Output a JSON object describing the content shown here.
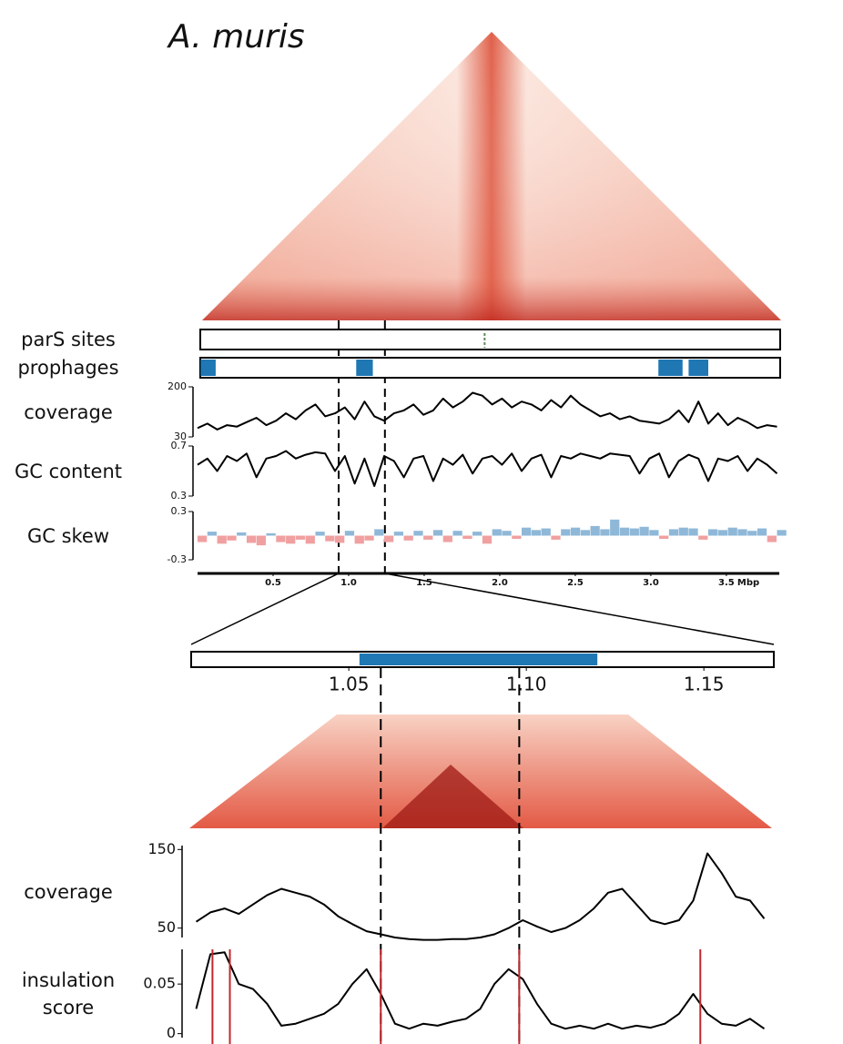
{
  "chart_data": [
    {
      "type": "tracks",
      "title": "A. muris",
      "xlim": [
        0,
        3.85
      ],
      "xticks": [
        0.5,
        {
          "value": 1,
          "label": "1.0"
        },
        1.5,
        {
          "value": 2,
          "label": "2.0"
        },
        2.5,
        {
          "value": 3,
          "label": "3.0"
        },
        3.5
      ],
      "x_unit": "Mbp",
      "highlight": [
        0.934,
        1.24
      ],
      "x": [
        0,
        0.065,
        0.13,
        0.195,
        0.26,
        0.325,
        0.39,
        0.455,
        0.52,
        0.585,
        0.65,
        0.715,
        0.78,
        0.845,
        0.91,
        0.975,
        1.04,
        1.105,
        1.17,
        1.235,
        1.3,
        1.365,
        1.43,
        1.495,
        1.56,
        1.625,
        1.69,
        1.755,
        1.82,
        1.885,
        1.95,
        2.015,
        2.08,
        2.145,
        2.21,
        2.275,
        2.34,
        2.405,
        2.47,
        2.535,
        2.6,
        2.665,
        2.73,
        2.795,
        2.86,
        2.925,
        2.99,
        3.055,
        3.12,
        3.185,
        3.25,
        3.315,
        3.38,
        3.445,
        3.51,
        3.575,
        3.64,
        3.705,
        3.77,
        3.835
      ],
      "tracks": [
        {
          "type": "sites",
          "name": "parS sites",
          "positions": [
            1.9
          ],
          "color": "#5b8c5a"
        },
        {
          "type": "intervals",
          "name": "prophages",
          "starts": [
            0.02,
            1.05,
            3.05,
            3.25
          ],
          "ends": [
            0.12,
            1.16,
            3.21,
            3.38
          ],
          "color": "#1f77b4"
        },
        {
          "type": "line",
          "name": "coverage",
          "ylim": [
            30,
            200
          ],
          "yticks": [
            30,
            200
          ],
          "color": "#000000",
          "values": [
            60,
            75,
            55,
            70,
            65,
            80,
            95,
            70,
            85,
            110,
            90,
            120,
            140,
            100,
            110,
            130,
            90,
            150,
            100,
            85,
            110,
            120,
            140,
            105,
            120,
            160,
            130,
            150,
            180,
            170,
            140,
            160,
            130,
            150,
            140,
            120,
            155,
            130,
            170,
            140,
            120,
            100,
            110,
            90,
            100,
            85,
            80,
            75,
            90,
            120,
            80,
            150,
            75,
            110,
            70,
            95,
            80,
            60,
            70,
            65
          ]
        },
        {
          "type": "line",
          "name": "GC content",
          "ylim": [
            0.3,
            0.7
          ],
          "yticks": [
            0.3,
            0.7
          ],
          "color": "#000000",
          "values": [
            0.55,
            0.6,
            0.5,
            0.62,
            0.58,
            0.64,
            0.45,
            0.6,
            0.62,
            0.66,
            0.6,
            0.63,
            0.65,
            0.64,
            0.5,
            0.62,
            0.4,
            0.6,
            0.38,
            0.62,
            0.58,
            0.45,
            0.6,
            0.62,
            0.42,
            0.6,
            0.55,
            0.63,
            0.48,
            0.6,
            0.62,
            0.55,
            0.64,
            0.5,
            0.6,
            0.63,
            0.45,
            0.62,
            0.6,
            0.64,
            0.62,
            0.6,
            0.64,
            0.63,
            0.62,
            0.48,
            0.6,
            0.64,
            0.45,
            0.58,
            0.63,
            0.6,
            0.42,
            0.6,
            0.58,
            0.62,
            0.5,
            0.6,
            0.55,
            0.48
          ]
        },
        {
          "type": "skew",
          "name": "GC skew",
          "ylim": [
            -0.3,
            0.3
          ],
          "yticks": [
            -0.3,
            0.3
          ],
          "positive_color": "#8fb8d8",
          "negative_color": "#f0a0a0",
          "values": [
            -0.08,
            0.05,
            -0.1,
            -0.06,
            0.04,
            -0.09,
            -0.12,
            0.03,
            -0.08,
            -0.1,
            -0.05,
            -0.1,
            0.05,
            -0.07,
            -0.09,
            0.06,
            -0.1,
            -0.06,
            0.08,
            -0.08,
            0.05,
            -0.06,
            0.06,
            -0.05,
            0.07,
            -0.08,
            0.06,
            -0.04,
            0.05,
            -0.1,
            0.08,
            0.06,
            -0.04,
            0.1,
            0.07,
            0.09,
            -0.05,
            0.08,
            0.1,
            0.07,
            0.12,
            0.08,
            0.2,
            0.1,
            0.09,
            0.11,
            0.07,
            -0.04,
            0.08,
            0.1,
            0.09,
            -0.05,
            0.08,
            0.07,
            0.1,
            0.08,
            0.06,
            0.09,
            -0.08,
            0.07
          ]
        }
      ]
    },
    {
      "type": "tracks",
      "xlim": [
        1.0056,
        1.1697
      ],
      "xticks": [
        1.05,
        {
          "value": 1.1,
          "label": "1.10"
        },
        1.15
      ],
      "boundaries": [
        1.059,
        1.098
      ],
      "x": [
        1.007,
        1.011,
        1.015,
        1.019,
        1.023,
        1.027,
        1.031,
        1.035,
        1.039,
        1.043,
        1.047,
        1.051,
        1.055,
        1.059,
        1.063,
        1.067,
        1.071,
        1.075,
        1.079,
        1.083,
        1.087,
        1.091,
        1.095,
        1.099,
        1.103,
        1.107,
        1.111,
        1.115,
        1.119,
        1.123,
        1.127,
        1.131,
        1.135,
        1.139,
        1.143,
        1.147,
        1.151,
        1.155,
        1.159,
        1.163,
        1.167
      ],
      "tracks": [
        {
          "type": "intervals",
          "starts": [
            1.053
          ],
          "ends": [
            1.12
          ],
          "color": "#1f77b4"
        },
        {
          "type": "line",
          "name": "coverage",
          "ylim": [
            38,
            155
          ],
          "yticks": [
            50,
            150
          ],
          "color": "#000000",
          "values": [
            58,
            70,
            75,
            68,
            80,
            92,
            100,
            95,
            90,
            80,
            65,
            55,
            46,
            42,
            38,
            36,
            35,
            35,
            36,
            36,
            38,
            42,
            50,
            60,
            52,
            45,
            50,
            60,
            75,
            95,
            100,
            80,
            60,
            55,
            60,
            85,
            145,
            120,
            90,
            85,
            62
          ]
        },
        {
          "type": "line",
          "name": "insulation score",
          "ylim": [
            -0.004,
            0.085
          ],
          "yticks": [
            0,
            0.05
          ],
          "color": "#000000",
          "peaks": [
            1.0116,
            1.0165,
            1.059,
            1.098,
            1.149
          ],
          "peak_color": "#c0282d",
          "values": [
            0.025,
            0.08,
            0.082,
            0.05,
            0.045,
            0.03,
            0.008,
            0.01,
            0.015,
            0.02,
            0.03,
            0.05,
            0.065,
            0.04,
            0.01,
            0.005,
            0.01,
            0.008,
            0.012,
            0.015,
            0.025,
            0.05,
            0.065,
            0.055,
            0.03,
            0.01,
            0.005,
            0.008,
            0.005,
            0.01,
            0.005,
            0.008,
            0.006,
            0.01,
            0.02,
            0.04,
            0.02,
            0.01,
            0.008,
            0.015,
            0.005
          ]
        }
      ]
    }
  ]
}
